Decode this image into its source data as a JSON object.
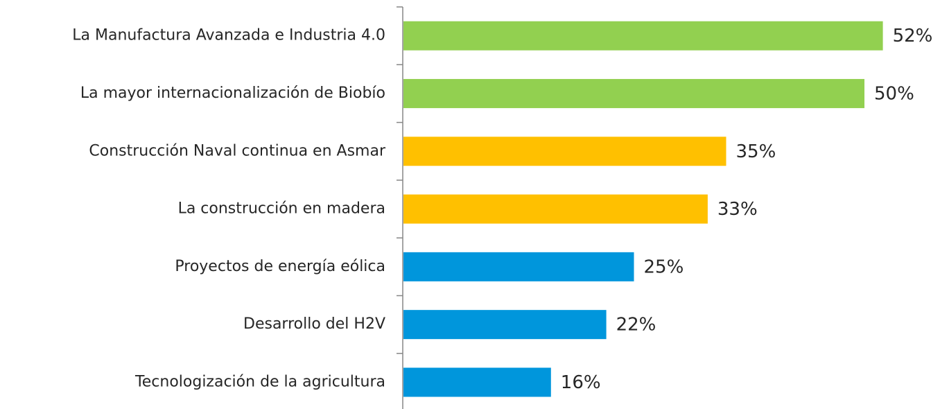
{
  "chart_data": {
    "type": "bar",
    "categories": [
      "La Manufactura Avanzada e Industria 4.0",
      "La mayor internacionalización de Biobío",
      "Construcción Naval continua en Asmar",
      "La construcción en madera",
      "Proyectos de energía eólica",
      "Desarrollo del H2V",
      "Tecnologización de la agricultura"
    ],
    "values": [
      52,
      50,
      35,
      33,
      25,
      22,
      16
    ],
    "value_labels": [
      "52%",
      "50%",
      "35%",
      "33%",
      "25%",
      "22%",
      "16%"
    ],
    "colors": [
      "#92d050",
      "#92d050",
      "#ffc000",
      "#ffc000",
      "#0096dc",
      "#0096dc",
      "#0096dc"
    ]
  }
}
